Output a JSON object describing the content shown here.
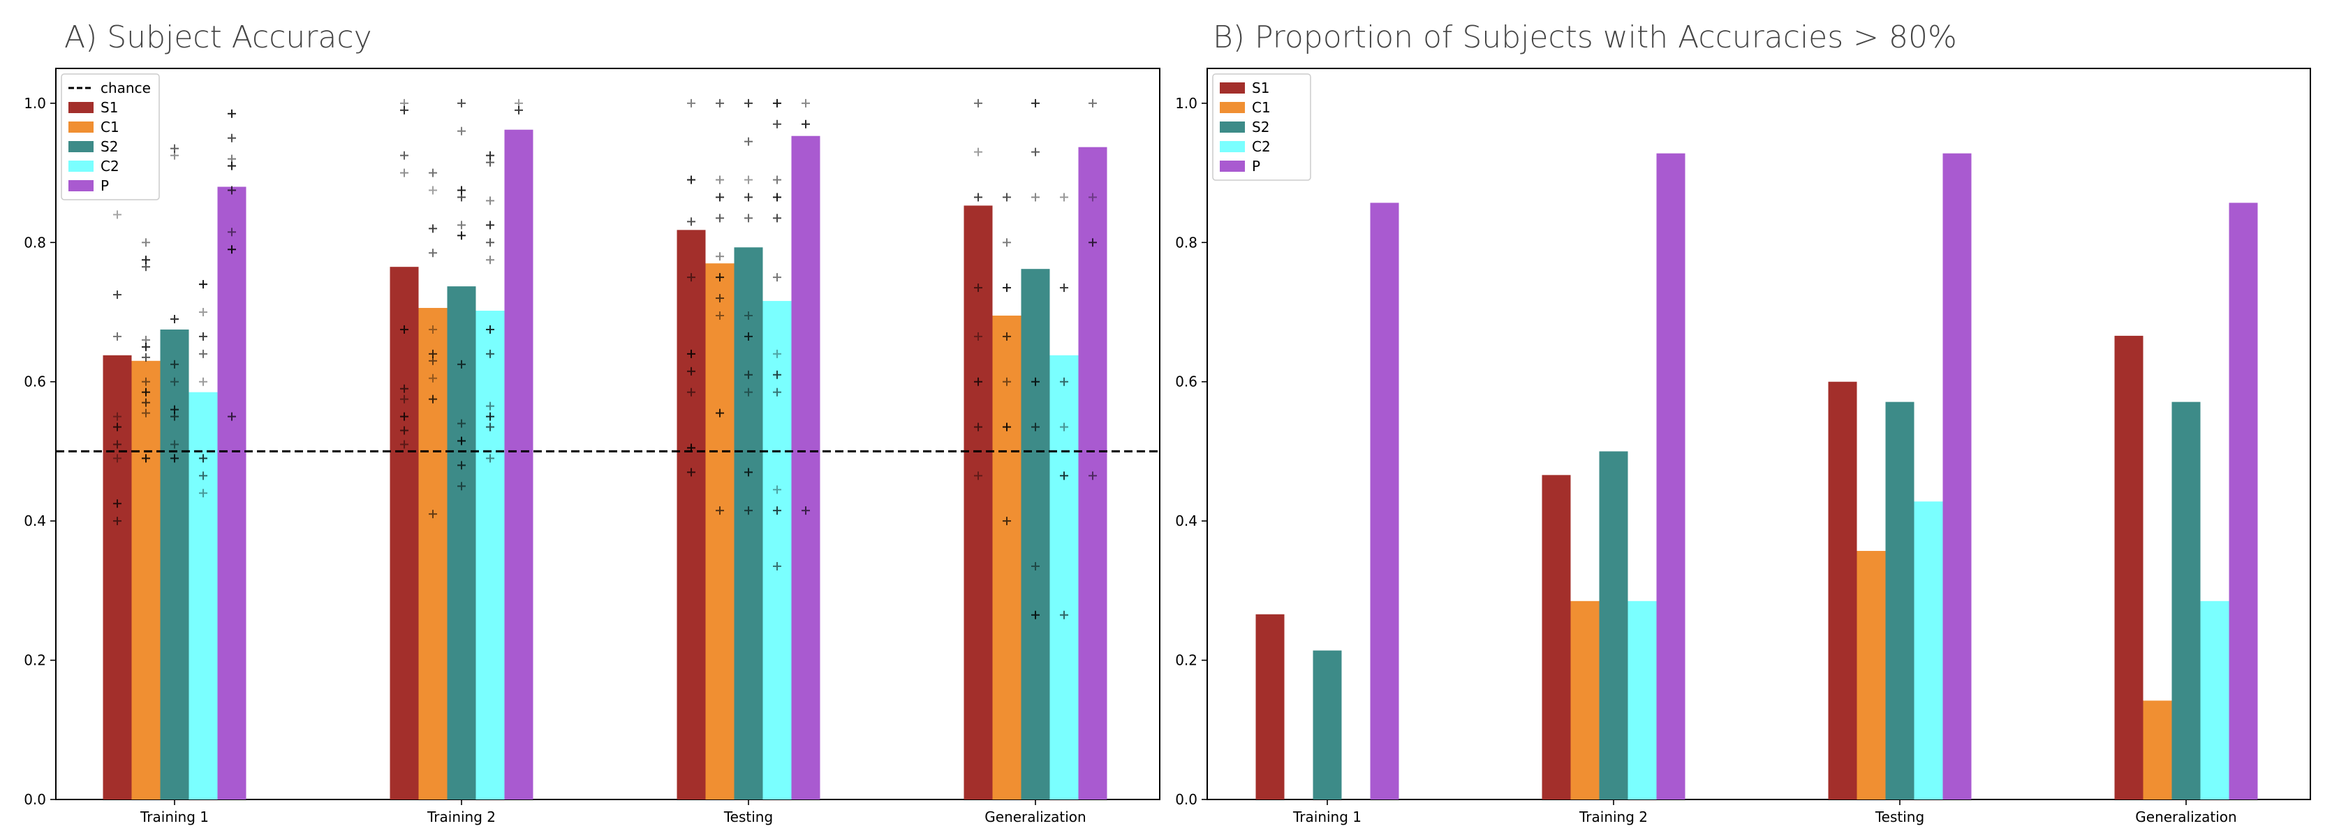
{
  "chart_data": [
    {
      "id": "A",
      "type": "bar",
      "title": "A) Subject Accuracy",
      "categories": [
        "Training 1",
        "Training 2",
        "Testing",
        "Generalization"
      ],
      "ylim": [
        0,
        1.05
      ],
      "yticks": [
        "0.0",
        "0.2",
        "0.4",
        "0.6",
        "0.8",
        "1.0"
      ],
      "ytick_values": [
        0,
        0.2,
        0.4,
        0.6,
        0.8,
        1.0
      ],
      "legend_position": "top-left",
      "reference_line": {
        "name": "chance",
        "value": 0.5,
        "style": "dashed",
        "color": "#000000"
      },
      "series": [
        {
          "name": "S1",
          "color": "#a32f2b",
          "values": [
            0.638,
            0.765,
            0.818,
            0.853
          ]
        },
        {
          "name": "C1",
          "color": "#f08f32",
          "values": [
            0.63,
            0.706,
            0.77,
            0.695
          ]
        },
        {
          "name": "S2",
          "color": "#3d8b88",
          "values": [
            0.675,
            0.737,
            0.793,
            0.762
          ]
        },
        {
          "name": "C2",
          "color": "#7affff",
          "values": [
            0.585,
            0.702,
            0.716,
            0.638
          ]
        },
        {
          "name": "P",
          "color": "#a95ad0",
          "values": [
            0.88,
            0.962,
            0.953,
            0.937
          ]
        }
      ],
      "subjects": [
        [
          [
            0.84,
            0.725,
            0.665,
            0.55,
            0.535,
            0.51,
            0.49,
            0.425,
            0.4
          ],
          [
            0.8,
            0.775,
            0.765,
            0.66,
            0.65,
            0.635,
            0.6,
            0.585,
            0.57,
            0.555,
            0.49
          ],
          [
            0.935,
            0.925,
            0.69,
            0.625,
            0.6,
            0.56,
            0.55,
            0.51,
            0.49
          ],
          [
            0.74,
            0.74,
            0.7,
            0.665,
            0.64,
            0.6,
            0.49,
            0.465,
            0.44
          ],
          [
            0.985,
            0.95,
            0.92,
            0.91,
            0.875,
            0.815,
            0.79,
            0.55
          ]
        ],
        [
          [
            1.0,
            0.99,
            0.925,
            0.9,
            0.675,
            0.59,
            0.575,
            0.55,
            0.53,
            0.51
          ],
          [
            0.9,
            0.875,
            0.82,
            0.785,
            0.675,
            0.64,
            0.63,
            0.605,
            0.575,
            0.41
          ],
          [
            1.0,
            0.96,
            0.875,
            0.865,
            0.825,
            0.81,
            0.625,
            0.54,
            0.515,
            0.48,
            0.45
          ],
          [
            0.925,
            0.915,
            0.86,
            0.825,
            0.8,
            0.775,
            0.675,
            0.64,
            0.565,
            0.55,
            0.535,
            0.49
          ],
          [
            1.0,
            0.99
          ]
        ],
        [
          [
            1.0,
            0.89,
            0.83,
            0.75,
            0.64,
            0.615,
            0.585,
            0.505,
            0.47
          ],
          [
            1.0,
            0.89,
            0.865,
            0.835,
            0.78,
            0.75,
            0.72,
            0.695,
            0.555,
            0.415
          ],
          [
            1.0,
            0.945,
            0.89,
            0.865,
            0.835,
            0.695,
            0.665,
            0.61,
            0.585,
            0.47,
            0.415
          ],
          [
            1.0,
            0.97,
            0.89,
            0.865,
            0.835,
            0.75,
            0.64,
            0.61,
            0.585,
            0.445,
            0.415,
            0.335
          ],
          [
            1.0,
            0.97,
            0.415
          ]
        ],
        [
          [
            1.0,
            0.93,
            0.865,
            0.735,
            0.665,
            0.6,
            0.535,
            0.465
          ],
          [
            0.865,
            0.8,
            0.735,
            0.665,
            0.6,
            0.535,
            0.4
          ],
          [
            1.0,
            0.93,
            0.865,
            0.6,
            0.535,
            0.335,
            0.265
          ],
          [
            0.865,
            0.735,
            0.6,
            0.535,
            0.465,
            0.265
          ],
          [
            1.0,
            0.865,
            0.8,
            0.465
          ]
        ]
      ]
    },
    {
      "id": "B",
      "type": "bar",
      "title": "B) Proportion of Subjects with Accuracies > 80%",
      "categories": [
        "Training 1",
        "Training 2",
        "Testing",
        "Generalization"
      ],
      "ylim": [
        0,
        1.05
      ],
      "yticks": [
        "0.0",
        "0.2",
        "0.4",
        "0.6",
        "0.8",
        "1.0"
      ],
      "ytick_values": [
        0,
        0.2,
        0.4,
        0.6,
        0.8,
        1.0
      ],
      "legend_position": "top-left",
      "series": [
        {
          "name": "S1",
          "color": "#a32f2b",
          "values": [
            0.266,
            0.466,
            0.6,
            0.666
          ]
        },
        {
          "name": "C1",
          "color": "#f08f32",
          "values": [
            0.0,
            0.285,
            0.357,
            0.142
          ]
        },
        {
          "name": "S2",
          "color": "#3d8b88",
          "values": [
            0.214,
            0.5,
            0.571,
            0.571
          ]
        },
        {
          "name": "C2",
          "color": "#7affff",
          "values": [
            0.0,
            0.285,
            0.428,
            0.285
          ]
        },
        {
          "name": "P",
          "color": "#a95ad0",
          "values": [
            0.857,
            0.928,
            0.928,
            0.857
          ]
        }
      ]
    }
  ]
}
